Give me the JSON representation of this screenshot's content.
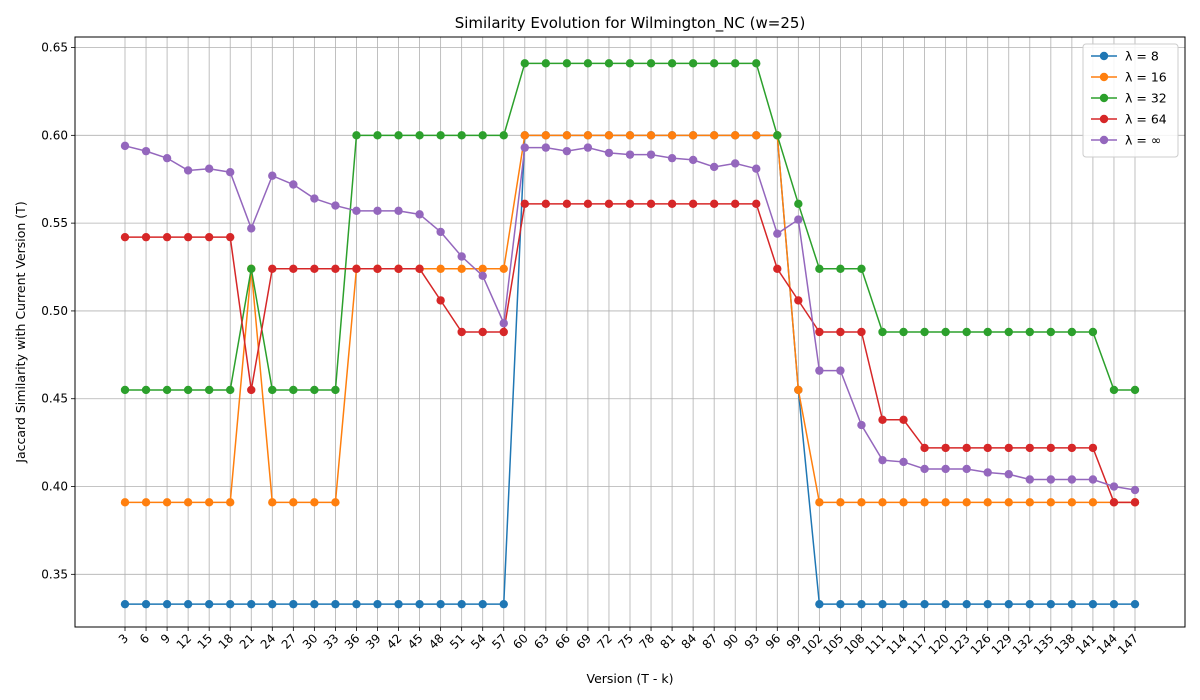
{
  "chart_data": {
    "type": "line",
    "title": "Similarity Evolution for Wilmington_NC (w=25)",
    "xlabel": "Version (T - k)",
    "ylabel": "Jaccard Similarity with Current Version (T)",
    "ylim": [
      0.32,
      0.656
    ],
    "y_ticks": [
      "0.35",
      "0.40",
      "0.45",
      "0.50",
      "0.55",
      "0.60",
      "0.65"
    ],
    "y_tick_values": [
      0.35,
      0.4,
      0.45,
      0.5,
      0.55,
      0.6,
      0.65
    ],
    "grid": true,
    "legend_position": "top-right",
    "categories": [
      "3",
      "6",
      "9",
      "12",
      "15",
      "18",
      "21",
      "24",
      "27",
      "30",
      "33",
      "36",
      "39",
      "42",
      "45",
      "48",
      "51",
      "54",
      "57",
      "60",
      "63",
      "66",
      "69",
      "72",
      "75",
      "78",
      "81",
      "84",
      "87",
      "90",
      "93",
      "96",
      "99",
      "102",
      "105",
      "108",
      "111",
      "114",
      "117",
      "120",
      "123",
      "126",
      "129",
      "132",
      "135",
      "138",
      "141",
      "144",
      "147"
    ],
    "series": [
      {
        "name": "λ = 8",
        "color": "#1f77b4",
        "values": [
          0.333,
          0.333,
          0.333,
          0.333,
          0.333,
          0.333,
          0.333,
          0.333,
          0.333,
          0.333,
          0.333,
          0.333,
          0.333,
          0.333,
          0.333,
          0.333,
          0.333,
          0.333,
          0.333,
          0.6,
          0.6,
          0.6,
          0.6,
          0.6,
          0.6,
          0.6,
          0.6,
          0.6,
          0.6,
          0.6,
          0.6,
          0.6,
          0.455,
          0.333,
          0.333,
          0.333,
          0.333,
          0.333,
          0.333,
          0.333,
          0.333,
          0.333,
          0.333,
          0.333,
          0.333,
          0.333,
          0.333,
          0.333,
          0.333
        ]
      },
      {
        "name": "λ = 16",
        "color": "#ff7f0e",
        "values": [
          0.391,
          0.391,
          0.391,
          0.391,
          0.391,
          0.391,
          0.524,
          0.391,
          0.391,
          0.391,
          0.391,
          0.524,
          0.524,
          0.524,
          0.524,
          0.524,
          0.524,
          0.524,
          0.524,
          0.6,
          0.6,
          0.6,
          0.6,
          0.6,
          0.6,
          0.6,
          0.6,
          0.6,
          0.6,
          0.6,
          0.6,
          0.6,
          0.455,
          0.391,
          0.391,
          0.391,
          0.391,
          0.391,
          0.391,
          0.391,
          0.391,
          0.391,
          0.391,
          0.391,
          0.391,
          0.391,
          0.391,
          0.391,
          0.391
        ]
      },
      {
        "name": "λ = 32",
        "color": "#2ca02c",
        "values": [
          0.455,
          0.455,
          0.455,
          0.455,
          0.455,
          0.455,
          0.524,
          0.455,
          0.455,
          0.455,
          0.455,
          0.6,
          0.6,
          0.6,
          0.6,
          0.6,
          0.6,
          0.6,
          0.6,
          0.641,
          0.641,
          0.641,
          0.641,
          0.641,
          0.641,
          0.641,
          0.641,
          0.641,
          0.641,
          0.641,
          0.641,
          0.6,
          0.561,
          0.524,
          0.524,
          0.524,
          0.488,
          0.488,
          0.488,
          0.488,
          0.488,
          0.488,
          0.488,
          0.488,
          0.488,
          0.488,
          0.488,
          0.455,
          0.455
        ]
      },
      {
        "name": "λ = 64",
        "color": "#d62728",
        "values": [
          0.542,
          0.542,
          0.542,
          0.542,
          0.542,
          0.542,
          0.455,
          0.524,
          0.524,
          0.524,
          0.524,
          0.524,
          0.524,
          0.524,
          0.524,
          0.506,
          0.488,
          0.488,
          0.488,
          0.561,
          0.561,
          0.561,
          0.561,
          0.561,
          0.561,
          0.561,
          0.561,
          0.561,
          0.561,
          0.561,
          0.561,
          0.524,
          0.506,
          0.488,
          0.488,
          0.488,
          0.438,
          0.438,
          0.422,
          0.422,
          0.422,
          0.422,
          0.422,
          0.422,
          0.422,
          0.422,
          0.422,
          0.391,
          0.391
        ]
      },
      {
        "name": "λ = ∞",
        "color": "#9467bd",
        "values": [
          0.594,
          0.591,
          0.587,
          0.58,
          0.581,
          0.579,
          0.547,
          0.577,
          0.572,
          0.564,
          0.56,
          0.557,
          0.557,
          0.557,
          0.555,
          0.545,
          0.531,
          0.52,
          0.493,
          0.593,
          0.593,
          0.591,
          0.593,
          0.59,
          0.589,
          0.589,
          0.587,
          0.586,
          0.582,
          0.584,
          0.581,
          0.544,
          0.552,
          0.466,
          0.466,
          0.435,
          0.415,
          0.414,
          0.41,
          0.41,
          0.41,
          0.408,
          0.407,
          0.404,
          0.404,
          0.404,
          0.404,
          0.4,
          0.398
        ]
      }
    ]
  }
}
